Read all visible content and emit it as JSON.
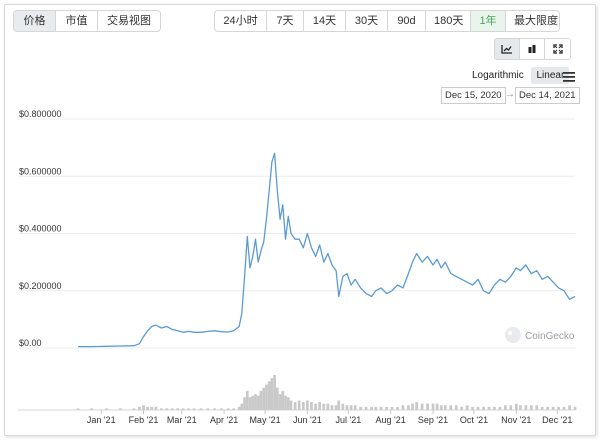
{
  "tabs": [
    {
      "label": "价格",
      "active": true
    },
    {
      "label": "市值",
      "active": false
    },
    {
      "label": "交易视图",
      "active": false
    }
  ],
  "ranges": [
    {
      "label": "24小时",
      "active": false
    },
    {
      "label": "7天",
      "active": false
    },
    {
      "label": "14天",
      "active": false
    },
    {
      "label": "30天",
      "active": false
    },
    {
      "label": "90d",
      "active": false
    },
    {
      "label": "180天",
      "active": false
    },
    {
      "label": "1年",
      "active": true
    },
    {
      "label": "最大限度",
      "active": false
    }
  ],
  "chart_modes": [
    {
      "icon": "line-chart-icon",
      "active": true
    },
    {
      "icon": "candlestick-icon",
      "active": false
    },
    {
      "icon": "fullscreen-icon",
      "active": false
    }
  ],
  "scale": {
    "log_label": "Logarithmic",
    "linear_label": "Linear",
    "selected": "Linear"
  },
  "date_range": {
    "from": "Dec 15, 2020",
    "to": "Dec 14, 2021",
    "arrow": "→"
  },
  "watermark": "CoinGecko",
  "colors": {
    "line": "#5b9bd5",
    "volume": "#c9c9c9",
    "active_range": "#4aa55a"
  },
  "chart_data": {
    "type": "line",
    "title": "",
    "xlabel": "",
    "ylabel": "",
    "ylim": [
      0,
      0.8
    ],
    "yticks": [
      "$0.800000",
      "$0.600000",
      "$0.400000",
      "$0.200000",
      "$0.00"
    ],
    "ytick_values": [
      0.8,
      0.6,
      0.4,
      0.2,
      0
    ],
    "xtick_labels": [
      "Jan '21",
      "Feb '21",
      "Mar '21",
      "Apr '21",
      "May '21",
      "Jun '21",
      "Jul '21",
      "Aug '21",
      "Sep '21",
      "Oct '21",
      "Nov '21",
      "Dec '21"
    ],
    "xtick_dates": [
      "2021-01-01",
      "2021-02-01",
      "2021-03-01",
      "2021-04-01",
      "2021-05-01",
      "2021-06-01",
      "2021-07-01",
      "2021-08-01",
      "2021-09-01",
      "2021-10-01",
      "2021-11-01",
      "2021-12-01"
    ],
    "grid": true,
    "series": [
      {
        "x": [
          "2020-12-15",
          "2020-12-25",
          "2021-01-05",
          "2021-01-15",
          "2021-01-25",
          "2021-01-29",
          "2021-02-01",
          "2021-02-04",
          "2021-02-07",
          "2021-02-10",
          "2021-02-14",
          "2021-02-18",
          "2021-02-22",
          "2021-02-26",
          "2021-03-02",
          "2021-03-06",
          "2021-03-10",
          "2021-03-15",
          "2021-03-20",
          "2021-03-25",
          "2021-03-30",
          "2021-04-04",
          "2021-04-08",
          "2021-04-12",
          "2021-04-14",
          "2021-04-16",
          "2021-04-18",
          "2021-04-20",
          "2021-04-22",
          "2021-04-24",
          "2021-04-26",
          "2021-04-28",
          "2021-04-30",
          "2021-05-02",
          "2021-05-04",
          "2021-05-06",
          "2021-05-08",
          "2021-05-10",
          "2021-05-12",
          "2021-05-14",
          "2021-05-16",
          "2021-05-18",
          "2021-05-20",
          "2021-05-23",
          "2021-05-26",
          "2021-05-29",
          "2021-06-01",
          "2021-06-04",
          "2021-06-07",
          "2021-06-10",
          "2021-06-13",
          "2021-06-16",
          "2021-06-19",
          "2021-06-22",
          "2021-06-24",
          "2021-06-27",
          "2021-06-30",
          "2021-07-03",
          "2021-07-06",
          "2021-07-10",
          "2021-07-14",
          "2021-07-18",
          "2021-07-21",
          "2021-07-25",
          "2021-07-29",
          "2021-08-02",
          "2021-08-06",
          "2021-08-10",
          "2021-08-14",
          "2021-08-17",
          "2021-08-20",
          "2021-08-24",
          "2021-08-28",
          "2021-09-01",
          "2021-09-04",
          "2021-09-07",
          "2021-09-10",
          "2021-09-14",
          "2021-09-18",
          "2021-09-22",
          "2021-09-26",
          "2021-09-30",
          "2021-10-04",
          "2021-10-08",
          "2021-10-12",
          "2021-10-16",
          "2021-10-20",
          "2021-10-24",
          "2021-10-28",
          "2021-11-01",
          "2021-11-04",
          "2021-11-08",
          "2021-11-12",
          "2021-11-16",
          "2021-11-20",
          "2021-11-24",
          "2021-11-28",
          "2021-12-02",
          "2021-12-06",
          "2021-12-10",
          "2021-12-14"
        ],
        "y": [
          0.005,
          0.005,
          0.006,
          0.007,
          0.008,
          0.015,
          0.04,
          0.06,
          0.075,
          0.08,
          0.07,
          0.075,
          0.065,
          0.06,
          0.055,
          0.058,
          0.055,
          0.055,
          0.058,
          0.06,
          0.057,
          0.056,
          0.06,
          0.075,
          0.12,
          0.25,
          0.39,
          0.28,
          0.32,
          0.38,
          0.3,
          0.34,
          0.37,
          0.45,
          0.55,
          0.65,
          0.68,
          0.55,
          0.45,
          0.5,
          0.38,
          0.46,
          0.4,
          0.38,
          0.38,
          0.35,
          0.4,
          0.35,
          0.32,
          0.36,
          0.3,
          0.33,
          0.29,
          0.27,
          0.18,
          0.25,
          0.26,
          0.22,
          0.24,
          0.21,
          0.19,
          0.18,
          0.2,
          0.21,
          0.19,
          0.2,
          0.22,
          0.21,
          0.26,
          0.3,
          0.33,
          0.3,
          0.32,
          0.29,
          0.31,
          0.28,
          0.3,
          0.26,
          0.25,
          0.24,
          0.23,
          0.22,
          0.24,
          0.2,
          0.19,
          0.22,
          0.24,
          0.23,
          0.25,
          0.28,
          0.27,
          0.29,
          0.26,
          0.27,
          0.24,
          0.25,
          0.23,
          0.21,
          0.2,
          0.17,
          0.18
        ]
      }
    ],
    "volume": [
      1,
      1,
      1,
      1,
      1,
      2,
      3,
      2,
      2,
      2,
      1,
      1,
      1,
      1,
      1,
      1,
      1,
      1,
      1,
      1,
      1,
      1,
      1,
      2,
      4,
      8,
      12,
      8,
      9,
      10,
      9,
      12,
      14,
      16,
      18,
      20,
      22,
      14,
      10,
      12,
      9,
      8,
      6,
      5,
      6,
      5,
      6,
      5,
      4,
      5,
      4,
      4,
      3,
      3,
      6,
      4,
      3,
      3,
      3,
      2,
      2,
      2,
      2,
      2,
      2,
      2,
      2,
      3,
      3,
      4,
      5,
      4,
      4,
      4,
      4,
      3,
      3,
      3,
      3,
      2,
      3,
      2,
      2,
      2,
      2,
      2,
      2,
      3,
      3,
      4,
      3,
      3,
      3,
      3,
      2,
      2,
      2,
      2,
      2,
      3,
      2
    ]
  }
}
